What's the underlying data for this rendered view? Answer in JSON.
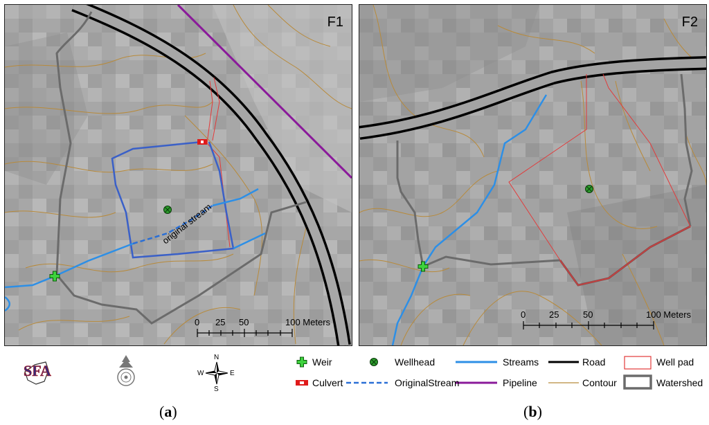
{
  "panels": [
    {
      "id": "a",
      "label": "F1",
      "caption_letter": "a",
      "scalebar": {
        "ticks": [
          "0",
          "25",
          "50",
          "100 Meters"
        ]
      },
      "annotation": "original stream"
    },
    {
      "id": "b",
      "label": "F2",
      "caption_letter": "b",
      "scalebar": {
        "ticks": [
          "0",
          "25",
          "50",
          "100 Meters"
        ]
      }
    }
  ],
  "compass": {
    "n": "N",
    "s": "S",
    "e": "E",
    "w": "W"
  },
  "legend": {
    "weir": "Weir",
    "culvert": "Culvert",
    "wellhead": "Wellhead",
    "original_stream": "OriginalStream",
    "streams": "Streams",
    "pipeline": "Pipeline",
    "road": "Road",
    "contour": "Contour",
    "well_pad": "Well pad",
    "watershed": "Watershed"
  },
  "colors": {
    "streams": "#2d8fe6",
    "original_stream": "#2a6fd6",
    "road": "#000000",
    "pipeline": "#8a1a9a",
    "contour": "#b88a3a",
    "well_pad": "#e23a3a",
    "watershed": "#6b6b6b",
    "weir": "#3dd23d",
    "culvert": "#e01a1a",
    "wellhead": "#2c9a2c"
  },
  "icons": [
    "sfa-logo-icon",
    "forestry-seal-icon",
    "north-arrow-icon"
  ]
}
